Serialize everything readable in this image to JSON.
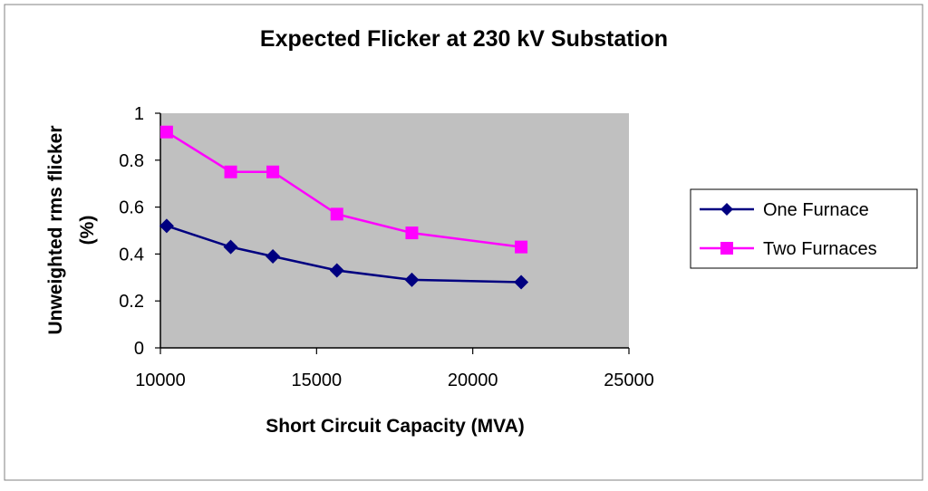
{
  "chart_data": {
    "type": "line",
    "title": "Expected Flicker at 230 kV Substation",
    "xlabel": "Short Circuit Capacity (MVA)",
    "ylabel": "Unweighted rms flicker (%)",
    "ylabel_lines": [
      "Unweighted rms flicker",
      "(%)"
    ],
    "xlim": [
      10000,
      25000
    ],
    "ylim": [
      0,
      1
    ],
    "xticks": [
      10000,
      15000,
      20000,
      25000
    ],
    "yticks": [
      0,
      0.2,
      0.4,
      0.6,
      0.8,
      1
    ],
    "xtick_labels": [
      "10000",
      "15000",
      "20000",
      "25000"
    ],
    "ytick_labels": [
      "0",
      "0.2",
      "0.4",
      "0.6",
      "0.8",
      "1"
    ],
    "grid": false,
    "plot_background": "#c0c0c0",
    "legend_position": "right",
    "x": [
      10200,
      12250,
      13600,
      15650,
      18050,
      21550
    ],
    "series": [
      {
        "name": "One Furnace",
        "color": "#000080",
        "marker": "diamond",
        "values": [
          0.52,
          0.43,
          0.39,
          0.33,
          0.29,
          0.28
        ]
      },
      {
        "name": "Two Furnaces",
        "color": "#ff00ff",
        "marker": "square",
        "values": [
          0.92,
          0.75,
          0.75,
          0.57,
          0.49,
          0.43
        ]
      }
    ]
  }
}
